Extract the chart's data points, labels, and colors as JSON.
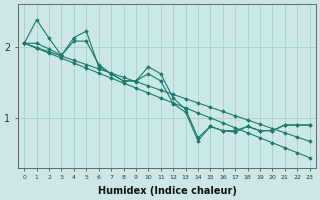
{
  "xlabel": "Humidex (Indice chaleur)",
  "ylabel": "",
  "background_color": "#cce8e6",
  "grid_color": "#aed4d2",
  "line_color": "#1a7a6e",
  "x_values": [
    0,
    1,
    2,
    3,
    4,
    5,
    6,
    7,
    8,
    9,
    10,
    11,
    12,
    13,
    14,
    15,
    16,
    17,
    18,
    19,
    20,
    21,
    22,
    23
  ],
  "series": [
    [
      2.05,
      2.38,
      2.12,
      1.88,
      2.13,
      2.22,
      1.72,
      1.62,
      1.52,
      1.52,
      1.72,
      1.62,
      1.28,
      1.12,
      0.72,
      0.88,
      0.82,
      0.82,
      0.88,
      0.82,
      0.82,
      0.9,
      0.9,
      0.9
    ],
    [
      2.05,
      2.05,
      1.97,
      1.88,
      2.08,
      2.08,
      1.75,
      1.62,
      1.52,
      1.52,
      1.62,
      1.52,
      1.2,
      1.08,
      0.68,
      0.88,
      0.82,
      0.8,
      0.88,
      0.82,
      0.82,
      0.9,
      0.9,
      0.9
    ],
    [
      2.05,
      1.98,
      1.91,
      1.84,
      1.77,
      1.7,
      1.63,
      1.56,
      1.49,
      1.42,
      1.35,
      1.28,
      1.21,
      1.14,
      1.07,
      1.0,
      0.93,
      0.86,
      0.79,
      0.72,
      0.65,
      0.58,
      0.51,
      0.44
    ],
    [
      2.05,
      1.99,
      1.93,
      1.87,
      1.81,
      1.75,
      1.69,
      1.63,
      1.57,
      1.51,
      1.45,
      1.39,
      1.33,
      1.27,
      1.21,
      1.15,
      1.09,
      1.03,
      0.97,
      0.91,
      0.85,
      0.79,
      0.73,
      0.67
    ]
  ],
  "yticks": [
    1,
    2
  ],
  "ylim": [
    0.3,
    2.6
  ],
  "xlim": [
    -0.5,
    23.5
  ]
}
